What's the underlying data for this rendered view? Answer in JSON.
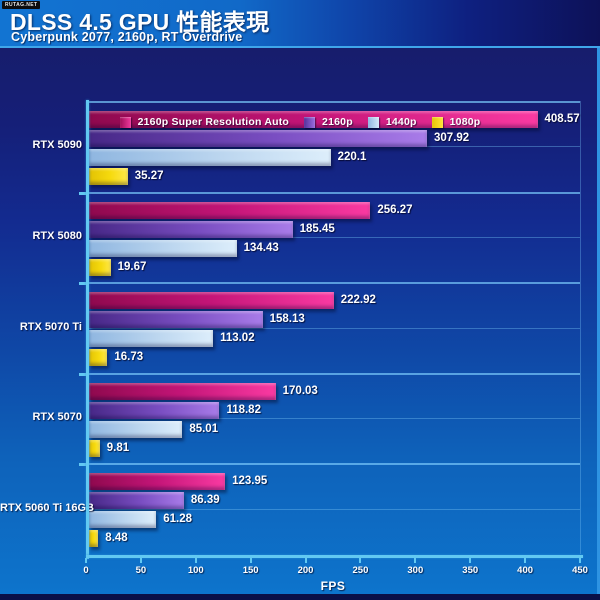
{
  "watermark": "RUTAG.NET",
  "header": {
    "title": "DLSS 4.5 GPU 性能表現",
    "subtitle": "Cyberpunk 2077, 2160p, RT Overdrive"
  },
  "legend": [
    {
      "label": "2160p Super Resolution Auto",
      "color": "#e82596"
    },
    {
      "label": "2160p",
      "color": "#8a5cd0"
    },
    {
      "label": "1440p",
      "color": "#b8d4ee"
    },
    {
      "label": "1080p",
      "color": "#f5d80a"
    }
  ],
  "chart_data": {
    "type": "bar",
    "orientation": "horizontal",
    "title": "DLSS 4.5 GPU 性能表現",
    "subtitle": "Cyberpunk 2077, 2160p, RT Overdrive",
    "categories": [
      "RTX 5090",
      "RTX 5080",
      "RTX 5070 Ti",
      "RTX 5070",
      "RTX 5060 Ti 16GB"
    ],
    "series": [
      {
        "name": "2160p Super Resolution Auto",
        "color": "#e82596",
        "values": [
          408.57,
          256.27,
          222.92,
          170.03,
          123.95
        ]
      },
      {
        "name": "2160p",
        "color": "#8a5cd0",
        "values": [
          307.92,
          185.45,
          158.13,
          118.82,
          86.39
        ]
      },
      {
        "name": "1440p",
        "color": "#b8d4ee",
        "values": [
          220.1,
          134.43,
          113.02,
          85.01,
          61.28
        ]
      },
      {
        "name": "1080p",
        "color": "#f5d80a",
        "values": [
          35.27,
          19.67,
          16.73,
          9.81,
          8.48
        ]
      }
    ],
    "xlabel": "FPS",
    "xlim": [
      0,
      450
    ],
    "xticks": [
      0,
      50,
      100,
      150,
      200,
      250,
      300,
      350,
      400,
      450
    ],
    "grid": true,
    "legend_position": "top"
  }
}
